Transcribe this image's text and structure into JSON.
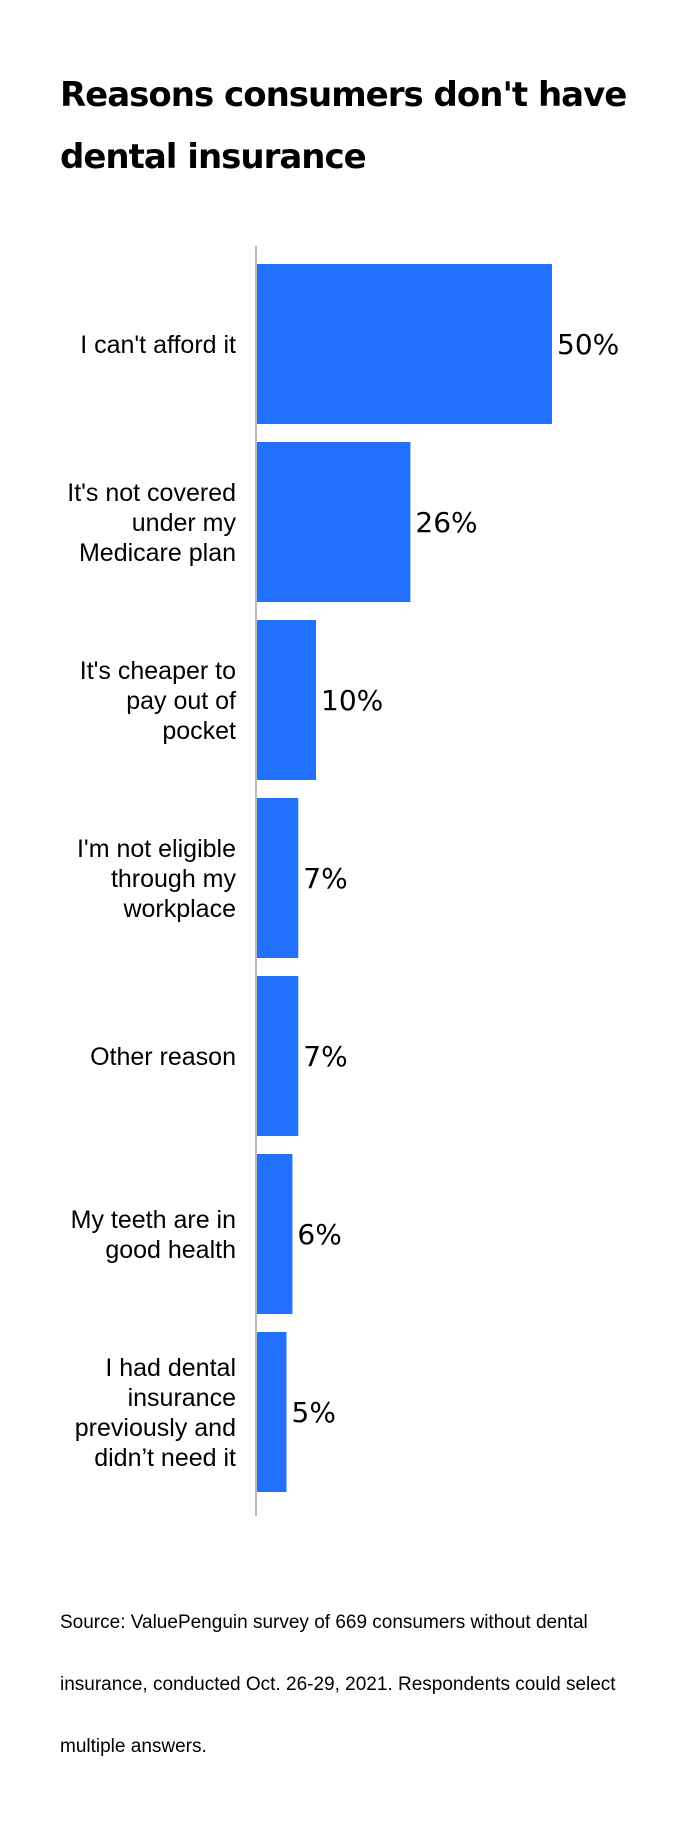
{
  "title": "Reasons consumers don't have dental insurance",
  "source": "Source: ValuePenguin survey of 669 consumers without dental insurance, conducted Oct. 26-29, 2021. Respondents could select multiple answers.",
  "colors": {
    "bar": "#2170FF",
    "axis": "#BBBBBB"
  },
  "chart_data": {
    "type": "bar",
    "orientation": "horizontal",
    "categories": [
      [
        "I can't afford it"
      ],
      [
        "It's not covered",
        "under my",
        "Medicare plan"
      ],
      [
        "It's cheaper to",
        "pay out of",
        "pocket"
      ],
      [
        "I'm not eligible",
        "through my",
        "workplace"
      ],
      [
        "Other reason"
      ],
      [
        "My teeth are in",
        "good health"
      ],
      [
        "I had dental",
        "insurance",
        "previously and",
        "didn’t need it"
      ]
    ],
    "values": [
      50,
      26,
      10,
      7,
      7,
      6,
      5
    ],
    "value_labels": [
      "50%",
      "26%",
      "10%",
      "7%",
      "7%",
      "6%",
      "5%"
    ],
    "unit": "%",
    "xlim": [
      0,
      50
    ]
  }
}
